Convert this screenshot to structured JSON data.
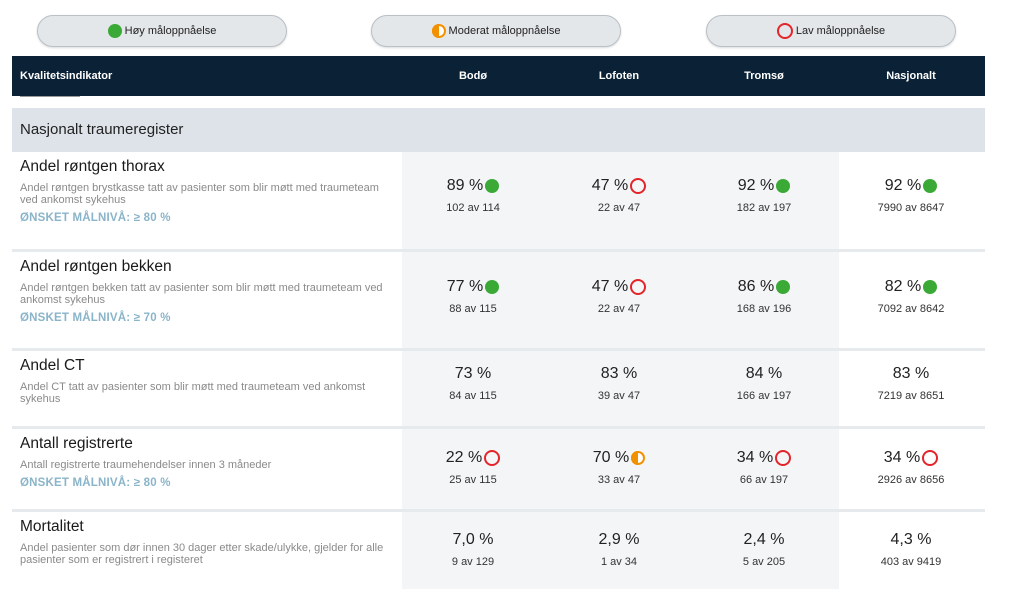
{
  "legend": {
    "high": "Høy måloppnåelse",
    "moderate": "Moderat måloppnåelse",
    "low": "Lav måloppnåelse"
  },
  "columns": {
    "indicator": "Kvalitetsindikator",
    "c1": "Bodø",
    "c2": "Lofoten",
    "c3": "Tromsø",
    "c4": "Nasjonalt"
  },
  "section": "Nasjonalt traumeregister",
  "rows": [
    {
      "title": "Andel røntgen thorax",
      "desc": "Andel røntgen brystkasse tatt av pasienter som blir møtt med traumeteam ved ankomst sykehus",
      "target": "ØNSKET MÅLNIVÅ: ≥ 80 %",
      "cells": [
        {
          "pct": "89 %",
          "count": "102 av 114",
          "status": "high"
        },
        {
          "pct": "47 %",
          "count": "22 av 47",
          "status": "low"
        },
        {
          "pct": "92 %",
          "count": "182 av 197",
          "status": "high"
        },
        {
          "pct": "92 %",
          "count": "7990 av 8647",
          "status": "high"
        }
      ]
    },
    {
      "title": "Andel røntgen bekken",
      "desc": "Andel røntgen bekken tatt av pasienter som blir møtt med traumeteam ved ankomst sykehus",
      "target": "ØNSKET MÅLNIVÅ: ≥ 70 %",
      "cells": [
        {
          "pct": "77 %",
          "count": "88 av 115",
          "status": "high"
        },
        {
          "pct": "47 %",
          "count": "22 av 47",
          "status": "low"
        },
        {
          "pct": "86 %",
          "count": "168 av 196",
          "status": "high"
        },
        {
          "pct": "82 %",
          "count": "7092 av 8642",
          "status": "high"
        }
      ]
    },
    {
      "title": "Andel CT",
      "desc": "Andel CT tatt av pasienter som blir møtt med traumeteam ved ankomst sykehus",
      "target": "",
      "cells": [
        {
          "pct": "73 %",
          "count": "84 av 115",
          "status": "none"
        },
        {
          "pct": "83 %",
          "count": "39 av 47",
          "status": "none"
        },
        {
          "pct": "84 %",
          "count": "166 av 197",
          "status": "none"
        },
        {
          "pct": "83 %",
          "count": "7219 av 8651",
          "status": "none"
        }
      ]
    },
    {
      "title": "Antall registrerte",
      "desc": "Antall registrerte traumehendelser innen 3 måneder",
      "target": "ØNSKET MÅLNIVÅ: ≥ 80 %",
      "cells": [
        {
          "pct": "22 %",
          "count": "25 av 115",
          "status": "low"
        },
        {
          "pct": "70 %",
          "count": "33 av 47",
          "status": "moderate"
        },
        {
          "pct": "34 %",
          "count": "66 av 197",
          "status": "low"
        },
        {
          "pct": "34 %",
          "count": "2926 av 8656",
          "status": "low"
        }
      ]
    },
    {
      "title": "Mortalitet",
      "desc": "Andel pasienter som dør innen 30 dager etter skade/ulykke, gjelder for alle pasienter som er registrert i registeret",
      "target": "",
      "cells": [
        {
          "pct": "7,0 %",
          "count": "9 av 129",
          "status": "none"
        },
        {
          "pct": "2,9 %",
          "count": "1 av 34",
          "status": "none"
        },
        {
          "pct": "2,4 %",
          "count": "5 av 205",
          "status": "none"
        },
        {
          "pct": "4,3 %",
          "count": "403 av 9419",
          "status": "none"
        }
      ]
    }
  ],
  "colors": {
    "high": "#3aa935",
    "moderate": "#f29100",
    "low": "#e3252b",
    "header_bg": "#0b2236"
  }
}
